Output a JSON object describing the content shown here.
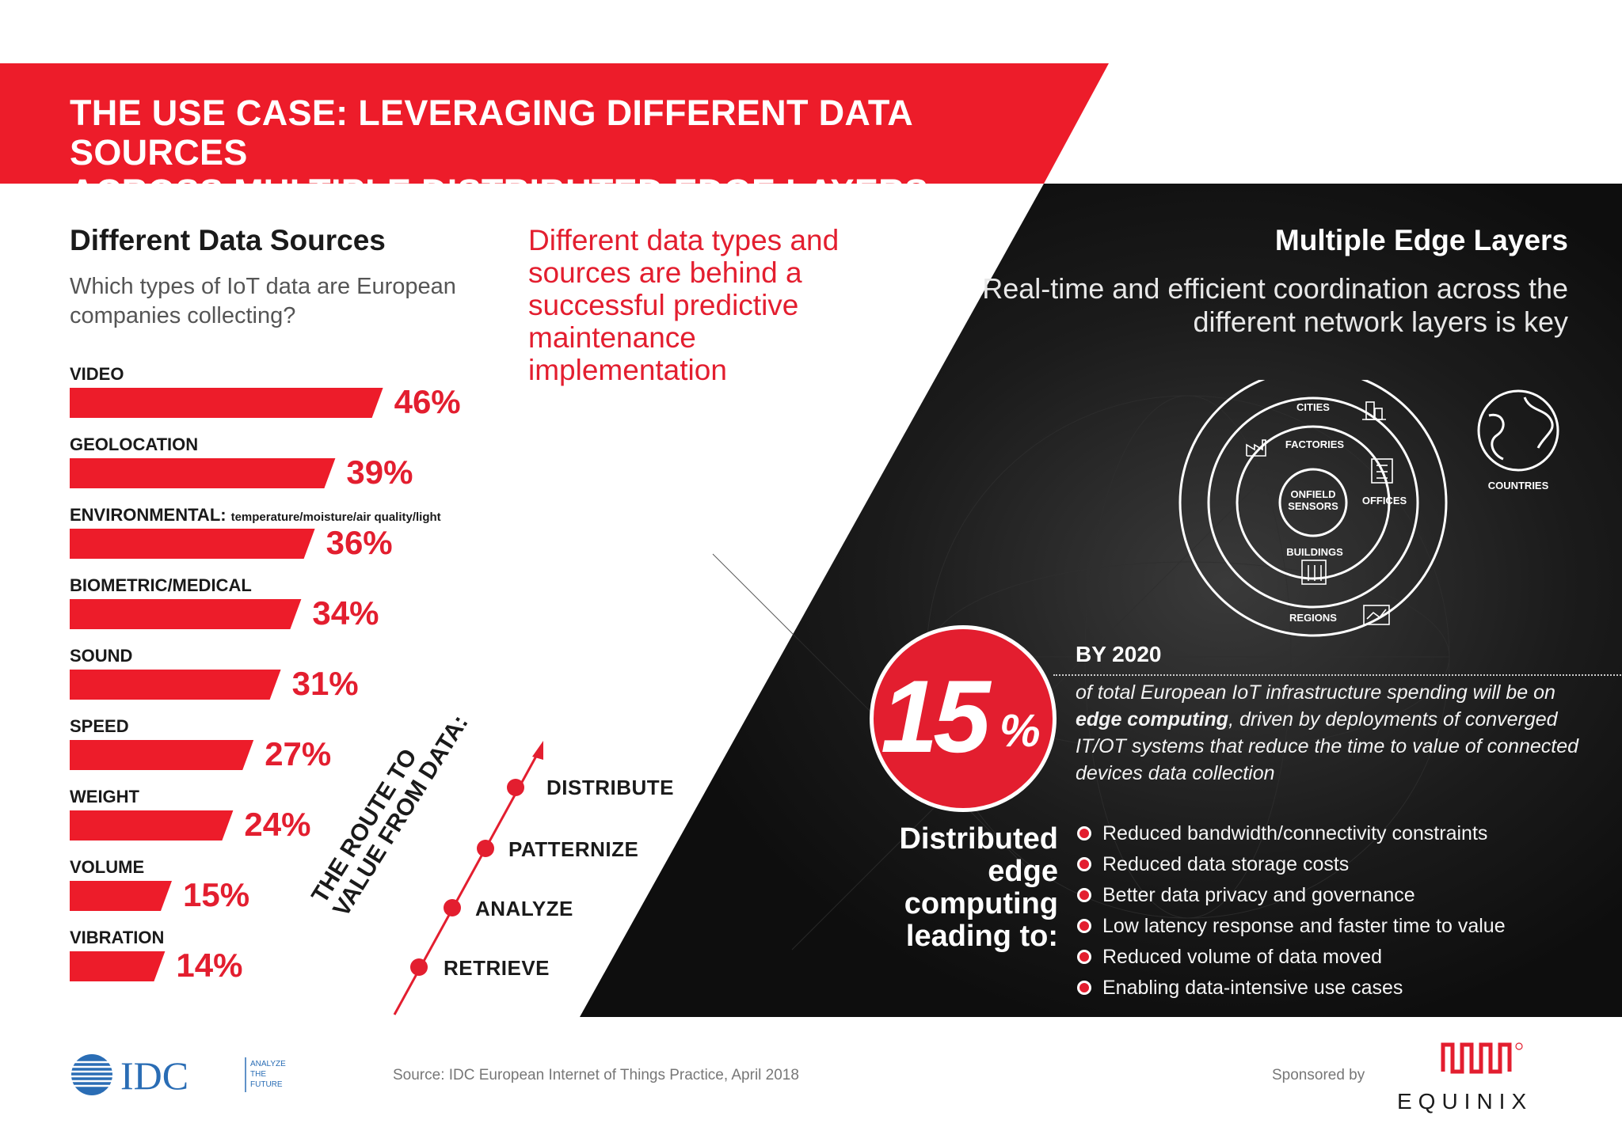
{
  "header": {
    "title_line1": "THE USE CASE: LEVERAGING DIFFERENT DATA SOURCES",
    "title_line2": "ACROSS MULTIPLE DISTRIBUTED EDGE LAYERS",
    "banner_color": "#ed1c2a"
  },
  "left": {
    "title": "Different Data Sources",
    "question": "Which types of IoT data are European companies collecting?",
    "tagline": "Different data types and sources are behind a successful predictive maintenance implementation"
  },
  "chart_data": {
    "type": "bar",
    "orientation": "horizontal",
    "categories": [
      "VIDEO",
      "GEOLOCATION",
      "ENVIRONMENTAL:",
      "BIOMETRIC/MEDICAL",
      "SOUND",
      "SPEED",
      "WEIGHT",
      "VOLUME",
      "VIBRATION"
    ],
    "category_notes": [
      "",
      "",
      "temperature/moisture/air quality/light",
      "",
      "",
      "",
      "",
      "",
      ""
    ],
    "values": [
      46,
      39,
      36,
      34,
      31,
      27,
      24,
      15,
      14
    ],
    "value_labels": [
      "46%",
      "39%",
      "36%",
      "34%",
      "31%",
      "27%",
      "24%",
      "15%",
      "14%"
    ],
    "unit": "%",
    "bar_color": "#ed1c2a"
  },
  "route": {
    "title_line1": "THE ROUTE TO",
    "title_line2": "VALUE FROM DATA:",
    "steps": [
      "RETRIEVE",
      "ANALYZE",
      "PATTERNIZE",
      "DISTRIBUTE"
    ]
  },
  "right": {
    "title": "Multiple Edge Layers",
    "subtitle": "Real-time and efficient coordination across the different network layers is key",
    "rings": {
      "cities": "CITIES",
      "factories": "FACTORIES",
      "onfield_1": "ONFIELD",
      "onfield_2": "SENSORS",
      "offices": "OFFICES",
      "buildings": "BUILDINGS",
      "regions": "REGIONS",
      "countries": "COUNTRIES"
    },
    "stat": {
      "number": "15",
      "percent": "%",
      "label": "BY 2020",
      "text_a": "of total European IoT infrastructure spending will be on ",
      "text_bold": "edge computing",
      "text_b": ", driven by deployments of converged IT/OT systems that reduce the time to value of connected devices data collection"
    },
    "distributed_heading": "Distributed edge computing leading to:",
    "benefits": [
      "Reduced bandwidth/connectivity constraints",
      "Reduced data storage costs",
      "Better data privacy and governance",
      "Low latency response and faster time to value",
      "Reduced volume of data moved",
      "Enabling data-intensive use cases"
    ],
    "panel_color": "#141414",
    "accent_color": "#e31e2f"
  },
  "footer": {
    "idc_name": "IDC",
    "idc_tagline_1": "ANALYZE",
    "idc_tagline_2": "THE",
    "idc_tagline_3": "FUTURE",
    "source": "Source: IDC European Internet of Things Practice, April 2018",
    "sponsored_by": "Sponsored by",
    "sponsor": "EQUINIX"
  }
}
